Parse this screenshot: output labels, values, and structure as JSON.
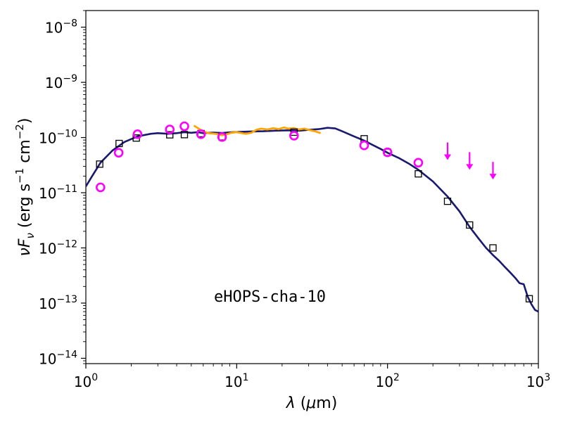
{
  "chart_data": {
    "type": "scatter",
    "x_scale": "log",
    "y_scale": "log",
    "xlim": [
      1,
      1000
    ],
    "ylim": [
      8e-15,
      2e-08
    ],
    "x_ticks": [
      {
        "value": 1,
        "base": "10",
        "exp": "0"
      },
      {
        "value": 10,
        "base": "10",
        "exp": "1"
      },
      {
        "value": 100,
        "base": "10",
        "exp": "2"
      },
      {
        "value": 1000,
        "base": "10",
        "exp": "3"
      }
    ],
    "y_ticks": [
      {
        "value": 1e-14,
        "base": "10",
        "exp": "−14"
      },
      {
        "value": 1e-13,
        "base": "10",
        "exp": "−13"
      },
      {
        "value": 1e-12,
        "base": "10",
        "exp": "−12"
      },
      {
        "value": 1e-11,
        "base": "10",
        "exp": "−11"
      },
      {
        "value": 1e-10,
        "base": "10",
        "exp": "−10"
      },
      {
        "value": 1e-09,
        "base": "10",
        "exp": "−9"
      },
      {
        "value": 1e-08,
        "base": "10",
        "exp": "−8"
      }
    ],
    "xlabel": {
      "sym": "λ",
      "rest": " (",
      "mu": "μ",
      "unit": "m)"
    },
    "ylabel": {
      "nu": "ν",
      "F": "F",
      "sub": "ν",
      "open": " (erg s",
      "exp1": "−1",
      "mid": " cm",
      "exp2": "−2",
      "close": ")"
    },
    "annotation": "eHOPS-cha-10",
    "grid": false,
    "series": [
      {
        "kind": "line",
        "color": "#191970",
        "x": [
          1.0,
          1.1,
          1.25,
          1.5,
          1.8,
          2.2,
          2.7,
          3.0,
          3.5,
          4.0,
          4.5,
          5.0,
          5.5,
          6.0,
          7.0,
          8.0,
          9.0,
          10.0,
          12.0,
          15.0,
          18.0,
          22.0,
          26.0,
          30.0,
          35.0,
          40.0,
          45.0,
          50.0,
          60.0,
          70.0,
          80.0,
          90.0,
          100.0,
          120.0,
          140.0,
          160.0,
          200.0,
          250.0,
          300.0,
          350.0,
          400.0,
          450.0,
          500.0,
          550.0,
          600.0,
          650.0,
          700.0,
          750.0,
          800.0,
          850.0,
          900.0,
          950.0,
          1000.0
        ],
        "y": [
          1.3e-11,
          2e-11,
          3.5e-11,
          5.8e-11,
          8.3e-11,
          1.05e-10,
          1.17e-10,
          1.2e-10,
          1.17e-10,
          1.2e-10,
          1.25e-10,
          1.22e-10,
          1.25e-10,
          1.2e-10,
          1.23e-10,
          1.21e-10,
          1.24e-10,
          1.26e-10,
          1.28e-10,
          1.3e-10,
          1.33e-10,
          1.35e-10,
          1.33e-10,
          1.38e-10,
          1.42e-10,
          1.5e-10,
          1.46e-10,
          1.3e-10,
          1.05e-10,
          8.8e-11,
          7.3e-11,
          6.2e-11,
          5.3e-11,
          4.2e-11,
          3.3e-11,
          2.6e-11,
          1.6e-11,
          8.5e-12,
          4.6e-12,
          2.4e-12,
          1.5e-12,
          1e-12,
          7.4e-13,
          5.8e-13,
          4.5e-13,
          3.6e-13,
          2.9e-13,
          2.3e-13,
          2.2e-13,
          1.3e-13,
          9.5e-14,
          7.5e-14,
          7e-14
        ]
      },
      {
        "kind": "line",
        "color": "#FFA500",
        "x": [
          5.2,
          5.6,
          6.0,
          6.5,
          7.0,
          7.5,
          8.0,
          8.6,
          9.2,
          10.0,
          10.8,
          11.5,
          12.5,
          13.5,
          14.5,
          16.0,
          17.5,
          19.0,
          20.5,
          22.0,
          24.0,
          26.0,
          28.0,
          30.0,
          33.0,
          36.0
        ],
        "y": [
          1.65e-10,
          1.45e-10,
          1.3e-10,
          1.2e-10,
          1.18e-10,
          1.15e-10,
          1.1e-10,
          1.15e-10,
          1.22e-10,
          1.25e-10,
          1.2e-10,
          1.17e-10,
          1.22e-10,
          1.38e-10,
          1.45e-10,
          1.4e-10,
          1.48e-10,
          1.42e-10,
          1.52e-10,
          1.45e-10,
          1.48e-10,
          1.4e-10,
          1.45e-10,
          1.38e-10,
          1.3e-10,
          1.2e-10
        ]
      },
      {
        "kind": "square",
        "color": "#000000",
        "x": [
          1.235,
          1.662,
          2.159,
          3.6,
          4.5,
          5.8,
          8.0,
          24.0,
          70.0,
          100.0,
          160.0,
          250.0,
          350.0,
          500.0,
          870.0
        ],
        "y": [
          3.3e-11,
          7.8e-11,
          9.8e-11,
          1.12e-10,
          1.13e-10,
          1.18e-10,
          1.03e-10,
          1.25e-10,
          9.5e-11,
          5.4e-11,
          2.2e-11,
          7e-12,
          2.6e-12,
          1e-12,
          1.2e-13
        ]
      },
      {
        "kind": "circle",
        "color": "#FF00FF",
        "x": [
          1.25,
          1.65,
          2.2,
          3.6,
          4.5,
          5.8,
          8.0,
          24.0,
          70.0,
          100.0,
          160.0
        ],
        "y": [
          1.25e-11,
          5.3e-11,
          1.15e-10,
          1.4e-10,
          1.6e-10,
          1.15e-10,
          1.02e-10,
          1.08e-10,
          7.2e-11,
          5.4e-11,
          3.5e-11
        ]
      },
      {
        "kind": "upper_limit",
        "color": "#FF00FF",
        "x": [
          250.0,
          350.0,
          500.0
        ],
        "y": [
          5.4e-11,
          3.6e-11,
          2.4e-11
        ]
      }
    ]
  }
}
